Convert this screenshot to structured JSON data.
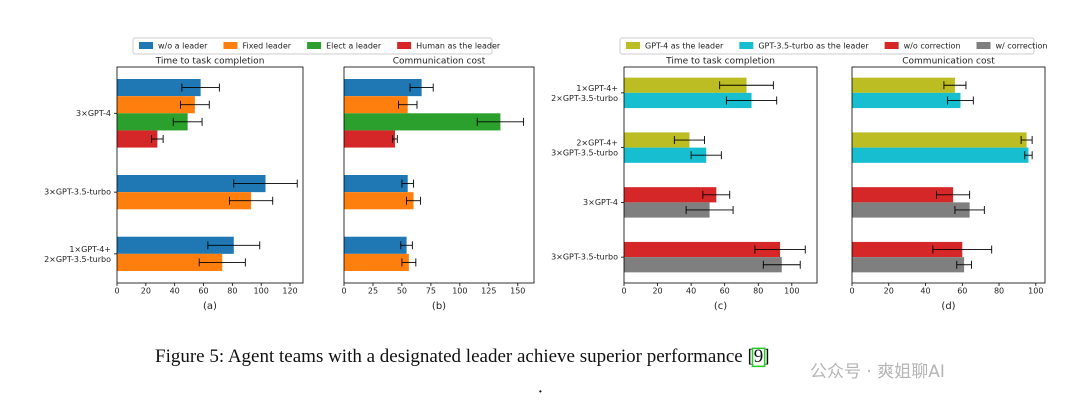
{
  "chart_data": [
    {
      "type": "barh",
      "title": "Time to task completion",
      "xlabel": "(a)",
      "categories": [
        "3×GPT-4",
        "3×GPT-3.5-turbo",
        "1×GPT-4+\n2×GPT-3.5-turbo"
      ],
      "xlim": [
        0,
        129
      ],
      "xticks": [
        0,
        20,
        40,
        60,
        80,
        100,
        120
      ],
      "series": [
        {
          "name": "w/o a leader",
          "color": "#1f77b4",
          "values": [
            58,
            103,
            81
          ],
          "errors": [
            13,
            22,
            18
          ]
        },
        {
          "name": "Fixed leader",
          "color": "#ff7f0e",
          "values": [
            54,
            93,
            73
          ],
          "errors": [
            10,
            15,
            16
          ]
        },
        {
          "name": "Elect a leader",
          "color": "#2ca02c",
          "values": [
            49,
            null,
            null
          ],
          "errors": [
            10,
            null,
            null
          ]
        },
        {
          "name": "Human as the leader",
          "color": "#d62728",
          "values": [
            28,
            null,
            null
          ],
          "errors": [
            4,
            null,
            null
          ]
        }
      ]
    },
    {
      "type": "barh",
      "title": "Communication cost",
      "xlabel": "(b)",
      "xlim": [
        0,
        164
      ],
      "xticks": [
        0,
        25,
        50,
        75,
        100,
        125,
        150
      ],
      "series": [
        {
          "color": "#1f77b4",
          "values": [
            67,
            55,
            54
          ],
          "errors": [
            10,
            5,
            5
          ]
        },
        {
          "color": "#ff7f0e",
          "values": [
            55,
            60,
            56
          ],
          "errors": [
            8,
            6,
            6
          ]
        },
        {
          "color": "#2ca02c",
          "values": [
            135,
            null,
            null
          ],
          "errors": [
            20,
            null,
            null
          ]
        },
        {
          "color": "#d62728",
          "values": [
            44,
            null,
            null
          ],
          "errors": [
            2,
            null,
            null
          ]
        }
      ]
    },
    {
      "type": "barh",
      "title": "Time to task completion",
      "xlabel": "(c)",
      "categories": [
        "1×GPT-4+\n2×GPT-3.5-turbo",
        "2×GPT-4+\n3×GPT-3.5-turbo",
        "3×GPT-4",
        "3×GPT-3.5-turbo"
      ],
      "xlim": [
        0,
        115
      ],
      "xticks": [
        0,
        20,
        40,
        60,
        80,
        100
      ],
      "series": [
        {
          "name": "GPT-4 as the leader",
          "color": "#bcbd22",
          "values": [
            73,
            39,
            null,
            null
          ],
          "errors": [
            16,
            9,
            null,
            null
          ]
        },
        {
          "name": "GPT-3.5-turbo as the leader",
          "color": "#17becf",
          "values": [
            76,
            49,
            null,
            null
          ],
          "errors": [
            15,
            9,
            null,
            null
          ]
        },
        {
          "name": "w/o correction",
          "color": "#d62728",
          "values": [
            null,
            null,
            55,
            93
          ],
          "errors": [
            null,
            null,
            8,
            15
          ]
        },
        {
          "name": "w/ correction",
          "color": "#7f7f7f",
          "values": [
            null,
            null,
            51,
            94
          ],
          "errors": [
            null,
            null,
            14,
            11
          ]
        }
      ]
    },
    {
      "type": "barh",
      "title": "Communication cost",
      "xlabel": "(d)",
      "xlim": [
        0,
        105
      ],
      "xticks": [
        0,
        20,
        40,
        60,
        80,
        100
      ],
      "series": [
        {
          "color": "#bcbd22",
          "values": [
            56,
            95,
            null,
            null
          ],
          "errors": [
            6,
            3,
            null,
            null
          ]
        },
        {
          "color": "#17becf",
          "values": [
            59,
            96,
            null,
            null
          ],
          "errors": [
            7,
            2,
            null,
            null
          ]
        },
        {
          "color": "#d62728",
          "values": [
            null,
            null,
            55,
            60
          ],
          "errors": [
            null,
            null,
            9,
            16
          ]
        },
        {
          "color": "#7f7f7f",
          "values": [
            null,
            null,
            64,
            61
          ],
          "errors": [
            null,
            null,
            8,
            4
          ]
        }
      ]
    }
  ],
  "caption": {
    "text": "Figure 5: Agent teams with a designated leader achieve superior performance ",
    "ref": "[9]",
    "end": "."
  },
  "watermark": "公众号 · 爽姐聊AI"
}
